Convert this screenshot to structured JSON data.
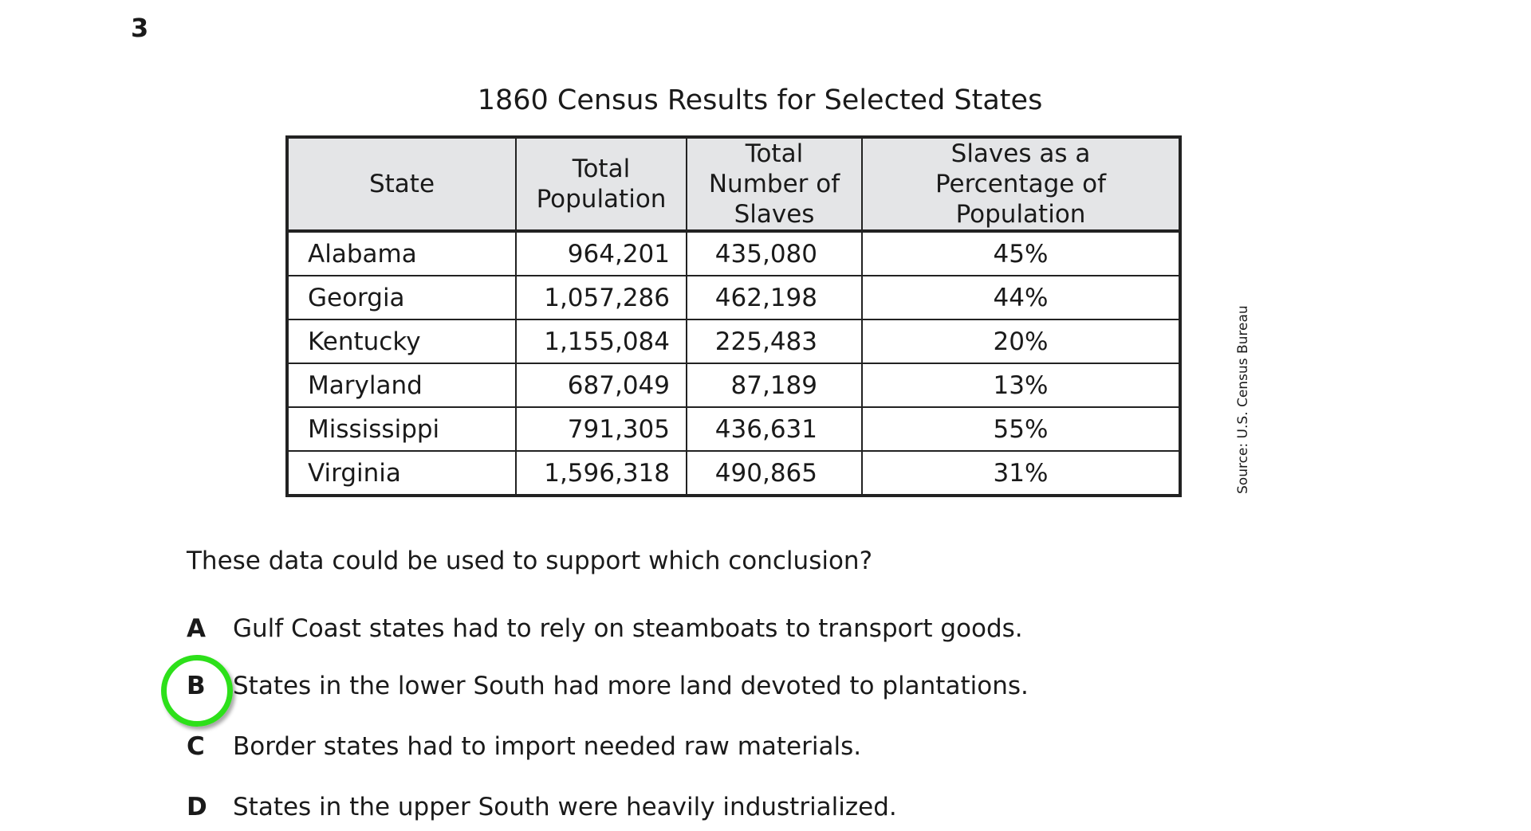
{
  "question_number": "3",
  "table": {
    "title": "1860 Census Results for Selected States",
    "headers": [
      "State",
      "Total Population",
      "Total Number of Slaves",
      "Slaves as a Percentage of Population"
    ],
    "rows": [
      [
        "Alabama",
        "964,201",
        "435,080",
        "45%"
      ],
      [
        "Georgia",
        "1,057,286",
        "462,198",
        "44%"
      ],
      [
        "Kentucky",
        "1,155,084",
        "225,483",
        "20%"
      ],
      [
        "Maryland",
        "687,049",
        "87,189",
        "13%"
      ],
      [
        "Mississippi",
        "791,305",
        "436,631",
        "55%"
      ],
      [
        "Virginia",
        "1,596,318",
        "490,865",
        "31%"
      ]
    ],
    "source": "Source: U.S. Census Bureau"
  },
  "question": "These data could be used to support which conclusion?",
  "options": [
    {
      "letter": "A",
      "text": "Gulf Coast states had to rely on steamboats to transport goods."
    },
    {
      "letter": "B",
      "text": "States in the lower South had more land devoted to plantations."
    },
    {
      "letter": "C",
      "text": "Border states had to import needed raw materials."
    },
    {
      "letter": "D",
      "text": "States in the upper South were heavily industrialized."
    }
  ],
  "selected_option": "B",
  "highlight_color": "#2de01a"
}
